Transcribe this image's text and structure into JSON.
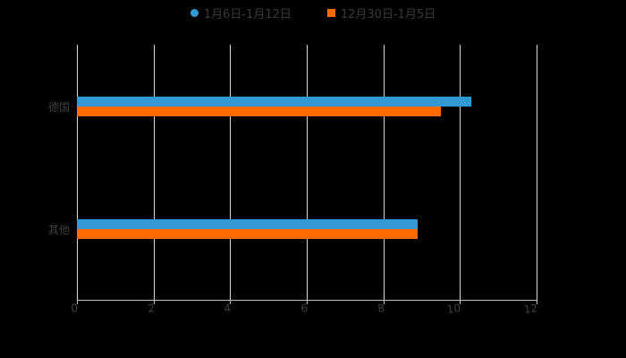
{
  "legend": [
    {
      "label": "1月6日-1月12日",
      "color": "#3498d4",
      "marker": "circle"
    },
    {
      "label": "12月30日-1月5日",
      "color": "#ff6a00",
      "marker": "square"
    }
  ],
  "axis": {
    "ticks": [
      "0",
      "2",
      "4",
      "6",
      "8",
      "10",
      "12"
    ]
  },
  "categories": [
    "德国",
    "其他"
  ],
  "chart_data": {
    "type": "bar",
    "orientation": "horizontal",
    "title": "",
    "categories": [
      "德国",
      "其他"
    ],
    "series": [
      {
        "name": "1月6日-1月12日",
        "color": "#3498d4",
        "values": [
          10.3,
          8.9
        ]
      },
      {
        "name": "12月30日-1月5日",
        "color": "#ff6a00",
        "values": [
          9.5,
          8.9
        ]
      }
    ],
    "xlabel": "",
    "ylabel": "",
    "xlim": [
      0,
      12
    ],
    "xticks": [
      0,
      2,
      4,
      6,
      8,
      10,
      12
    ],
    "grid": true,
    "legend_position": "top"
  }
}
